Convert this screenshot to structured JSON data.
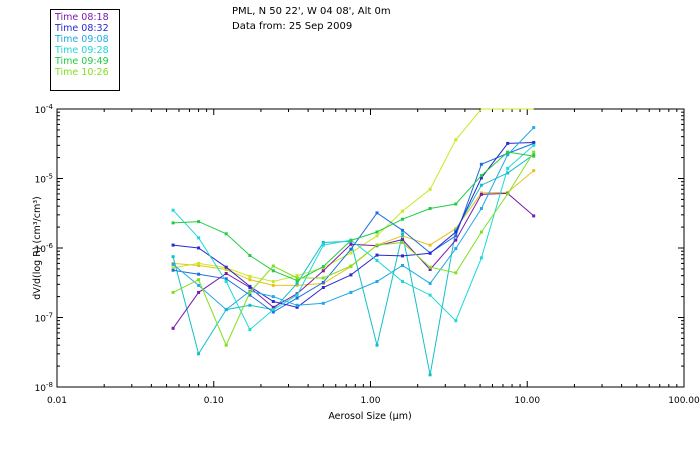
{
  "header": {
    "title_line1": "PML, N 50 22', W 04 08', Alt 0m",
    "title_line2": "Data from: 25 Sep 2009"
  },
  "chart_data": {
    "type": "line",
    "x_scale": "log",
    "y_scale": "log",
    "xlabel": "Aerosol Size (μm)",
    "ylabel": "dV/d(log R)  (cm³/cm³)",
    "xlim": [
      0.01,
      100
    ],
    "ylim": [
      1e-08,
      0.0001
    ],
    "x_tick_labels": [
      "0.01",
      "0.10",
      "1.00",
      "10.00",
      "100.00"
    ],
    "x_tick_values": [
      0.01,
      0.1,
      1,
      10,
      100
    ],
    "y_tick_values": [
      1e-08,
      1e-07,
      1e-06,
      1e-05,
      0.0001
    ],
    "y_tick_labels": [
      {
        "base": "10",
        "exp": "-8"
      },
      {
        "base": "10",
        "exp": "-7"
      },
      {
        "base": "10",
        "exp": "-6"
      },
      {
        "base": "10",
        "exp": "-5"
      },
      {
        "base": "10",
        "exp": "-4"
      }
    ],
    "legend": {
      "position": "top-left, outside plot"
    },
    "series": [
      {
        "name": "Time 08:18",
        "color": "#7a1bb0",
        "x": [
          0.055,
          0.08,
          0.12,
          0.17,
          0.24,
          0.34,
          0.5,
          0.75,
          1.1,
          1.6,
          2.4,
          3.5,
          5.1,
          7.5,
          11.0
        ],
        "y": [
          7e-08,
          2.3e-07,
          4.3e-07,
          2.7e-07,
          1.4e-07,
          2.2e-07,
          4.7e-07,
          1.13e-06,
          1.08e-06,
          1.32e-06,
          4.9e-07,
          1.3e-06,
          5.9e-06,
          6.1e-06,
          2.9e-06
        ]
      },
      {
        "name": "Time 08:32",
        "color": "#2a2ad0",
        "x": [
          0.055,
          0.08,
          0.12,
          0.17,
          0.24,
          0.34,
          0.5,
          0.75,
          1.1,
          1.6,
          2.4,
          3.5,
          5.1,
          7.5,
          11.0
        ],
        "y": [
          1.1e-06,
          1e-06,
          5.3e-07,
          2.8e-07,
          1.7e-07,
          1.4e-07,
          2.7e-07,
          4.1e-07,
          7.9e-07,
          7.7e-07,
          8.4e-07,
          1.7e-06,
          1.02e-05,
          3.2e-05,
          3.3e-05
        ]
      },
      {
        "name": "Time 09:08",
        "color": "#1fa9e6",
        "x": [
          0.055,
          0.08,
          0.12,
          0.17,
          0.24,
          0.34,
          0.5,
          0.75,
          1.1,
          1.6,
          2.4,
          3.5,
          5.1,
          7.5,
          11.0
        ],
        "y": [
          5.8e-07,
          2.9e-07,
          1.3e-07,
          2.4e-07,
          2e-07,
          1.5e-07,
          1.6e-07,
          2.3e-07,
          3.3e-07,
          5.6e-07,
          3.1e-07,
          9.8e-07,
          3.7e-06,
          2.2e-05,
          5.4e-05
        ]
      },
      {
        "name": "Time 09:28",
        "color": "#1fd8d8",
        "x": [
          0.055,
          0.08,
          0.12,
          0.17,
          0.24,
          0.34,
          0.5,
          0.75,
          1.1,
          1.6,
          2.4,
          3.5,
          5.1,
          7.5,
          11.0
        ],
        "y": [
          3.5e-06,
          1.4e-06,
          3.3e-07,
          6.7e-08,
          1.3e-07,
          2.1e-07,
          1.1e-06,
          1.3e-06,
          6.6e-07,
          3.3e-07,
          2.1e-07,
          9e-08,
          7.2e-07,
          1.4e-05,
          3e-05
        ]
      },
      {
        "name": "Time 09:49",
        "color": "#22cc44",
        "x": [
          0.055,
          0.08,
          0.12,
          0.17,
          0.24,
          0.34,
          0.5,
          0.75,
          1.1,
          1.6,
          2.4,
          3.5,
          5.1,
          7.5,
          11.0
        ],
        "y": [
          2.3e-06,
          2.4e-06,
          1.6e-06,
          7.8e-07,
          4.7e-07,
          3.4e-07,
          5.4e-07,
          1.28e-06,
          1.7e-06,
          2.6e-06,
          3.7e-06,
          4.3e-06,
          1.1e-05,
          2.4e-05,
          2.1e-05
        ]
      },
      {
        "name": "Time 10:26",
        "color": "#7fe020",
        "x": [
          0.055,
          0.08,
          0.12,
          0.17,
          0.24,
          0.34,
          0.5,
          0.75,
          1.1,
          1.6,
          2.4,
          3.5,
          5.1,
          7.5,
          11.0
        ],
        "y": [
          2.3e-07,
          3.5e-07,
          4e-08,
          2.3e-07,
          5.5e-07,
          3.7e-07,
          3.7e-07,
          5.5e-07,
          1.1e-06,
          1.2e-06,
          5.3e-07,
          4.4e-07,
          1.7e-06,
          6e-06,
          2.4e-05
        ]
      }
    ],
    "extra_curves": [
      {
        "color": "#e8c21a",
        "x": [
          0.055,
          0.08,
          0.12,
          0.17,
          0.24,
          0.34,
          0.5,
          0.75,
          1.1,
          1.6,
          2.4,
          3.5,
          5.1,
          7.5,
          11.0
        ],
        "y": [
          6e-07,
          5.6e-07,
          4.9e-07,
          3.5e-07,
          2.9e-07,
          2.9e-07,
          3.1e-07,
          5.4e-07,
          1.1e-06,
          1.5e-06,
          1.1e-06,
          1.9e-06,
          6.2e-06,
          6.3e-06,
          1.3e-05
        ]
      },
      {
        "color": "#c8e820",
        "x": [
          0.055,
          0.08,
          0.12,
          0.17,
          0.24,
          0.34,
          0.5,
          0.75,
          1.1,
          1.6,
          2.4,
          3.5,
          5.1,
          7.5,
          11.0
        ],
        "y": [
          5.2e-07,
          6e-07,
          5.2e-07,
          3.9e-07,
          3.3e-07,
          4e-07,
          5.2e-07,
          8.5e-07,
          1.5e-06,
          3.4e-06,
          7e-06,
          3.6e-05,
          0.0001,
          0.0001,
          0.0001
        ]
      },
      {
        "color": "#10c0c8",
        "x": [
          0.055,
          0.08,
          0.12,
          0.17,
          0.24,
          0.34,
          0.5,
          0.75,
          1.1,
          1.6,
          2.4,
          3.5,
          5.1,
          7.5,
          11.0
        ],
        "y": [
          7.5e-07,
          3e-08,
          1.3e-07,
          1.5e-07,
          1.3e-07,
          3.1e-07,
          1.2e-06,
          1.25e-06,
          4e-08,
          1.6e-06,
          1.5e-08,
          1.8e-06,
          8e-06,
          1.2e-05,
          2.2e-05
        ]
      },
      {
        "color": "#1a6fe0",
        "x": [
          0.055,
          0.08,
          0.12,
          0.17,
          0.24,
          0.34,
          0.5,
          0.75,
          1.1,
          1.6,
          2.4,
          3.5,
          5.1,
          7.5,
          11.0
        ],
        "y": [
          4.8e-07,
          4.2e-07,
          3.6e-07,
          2.1e-07,
          1.2e-07,
          1.9e-07,
          3.2e-07,
          9.6e-07,
          3.2e-06,
          1.8e-06,
          8.5e-07,
          1.5e-06,
          1.6e-05,
          2.3e-05,
          3.2e-05
        ]
      }
    ]
  }
}
